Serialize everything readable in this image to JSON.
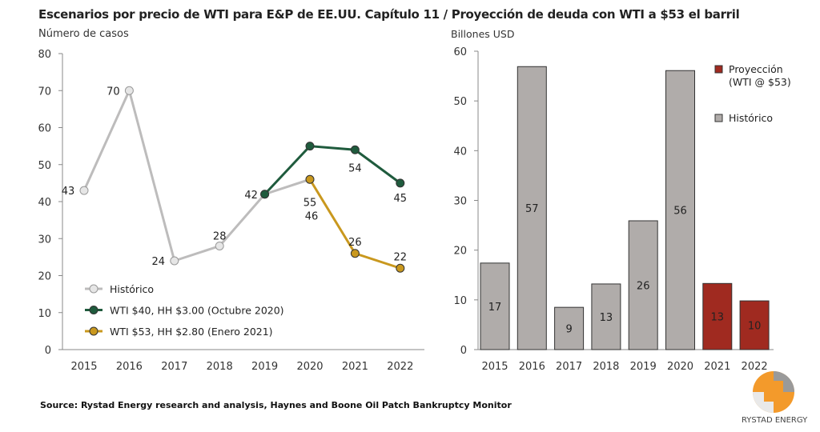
{
  "title": "Escenarios por precio de WTI para E&P de EE.UU. Capítulo 11   / Proyección de deuda con WTI a $53 el barril",
  "source": "Source: Rystad Energy research and analysis, Haynes and Boone Oil Patch Bankruptcy Monitor",
  "logo_text": "RYSTAD ENERGY",
  "chart_data": [
    {
      "type": "line",
      "ylabel": "Número de casos",
      "ylim": [
        0,
        80
      ],
      "yticks": [
        0,
        10,
        20,
        30,
        40,
        50,
        60,
        70,
        80
      ],
      "categories": [
        "2015",
        "2016",
        "2017",
        "2018",
        "2019",
        "2020",
        "2021",
        "2022"
      ],
      "legend": "bottom-left",
      "grid": false,
      "series": [
        {
          "name": "Histórico",
          "color": "#bdbcbc",
          "x": [
            "2015",
            "2016",
            "2017",
            "2018",
            "2019",
            "2020"
          ],
          "values": [
            43,
            70,
            24,
            28,
            42,
            46
          ]
        },
        {
          "name": "WTI $40, HH $3.00 (Octubre 2020)",
          "color": "#1f5b3d",
          "x": [
            "2019",
            "2020",
            "2021",
            "2022"
          ],
          "values": [
            42,
            55,
            54,
            45
          ]
        },
        {
          "name": "WTI $53, HH $2.80 (Enero 2021)",
          "color": "#c9981e",
          "x": [
            "2020",
            "2021",
            "2022"
          ],
          "values": [
            46,
            26,
            22
          ]
        }
      ]
    },
    {
      "type": "bar",
      "ylabel": "Billones USD",
      "ylim": [
        0,
        60
      ],
      "yticks": [
        0,
        10,
        20,
        30,
        40,
        50,
        60
      ],
      "categories": [
        "2015",
        "2016",
        "2017",
        "2018",
        "2019",
        "2020",
        "2021",
        "2022"
      ],
      "legend": "top-right",
      "grid": false,
      "values": [
        17.4,
        56.9,
        8.5,
        13.2,
        25.9,
        56.1,
        13.3,
        9.8
      ],
      "labels": [
        "17",
        "57",
        "9",
        "13",
        "26",
        "56",
        "13",
        "10"
      ],
      "kinds": [
        "hist",
        "hist",
        "hist",
        "hist",
        "hist",
        "hist",
        "proj",
        "proj"
      ],
      "legend_items": [
        {
          "key": "proj",
          "label": [
            "Proyección",
            "(WTI @ $53)"
          ],
          "color": "#a02a20"
        },
        {
          "key": "hist",
          "label": [
            "Histórico"
          ],
          "color": "#b0acaa"
        }
      ]
    }
  ]
}
